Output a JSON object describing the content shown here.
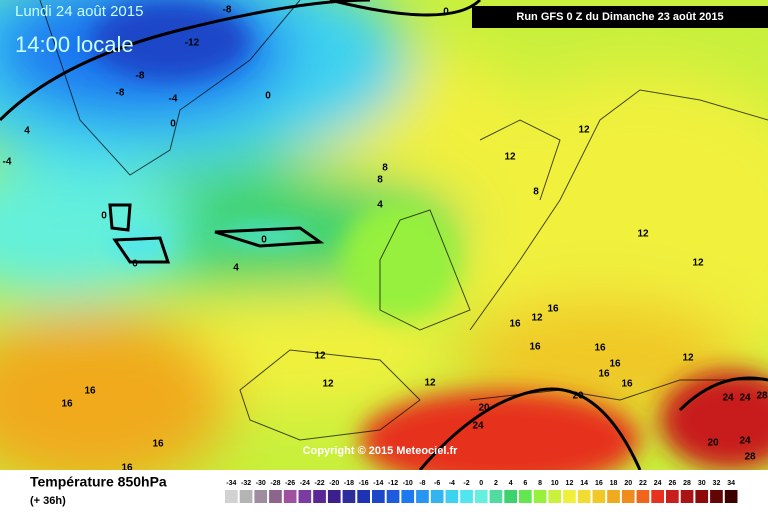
{
  "header": {
    "date": "Lundi 24 août 2015",
    "time": "14:00 locale",
    "run": "Run GFS 0 Z du Dimanche 23 août 2015"
  },
  "copyright": "Copyright © 2015 Meteociel.fr",
  "footer": {
    "title": "Température 850hPa",
    "lead": "(+ 36h)"
  },
  "legend": {
    "ticks": [
      -34,
      -32,
      -30,
      -28,
      -26,
      -24,
      -22,
      -20,
      -18,
      -16,
      -14,
      -12,
      -10,
      -8,
      -6,
      -4,
      -2,
      0,
      2,
      4,
      6,
      8,
      10,
      12,
      14,
      16,
      18,
      20,
      22,
      24,
      26,
      28,
      30,
      32,
      34
    ],
    "colors": [
      "#d2d2d2",
      "#b4b4b4",
      "#a08ca0",
      "#8c648c",
      "#a050a0",
      "#7a3ca0",
      "#5a2896",
      "#3c1e8c",
      "#2d2d9b",
      "#1e32b4",
      "#1e46c8",
      "#1e5adc",
      "#1e78f0",
      "#2896f0",
      "#32b4f0",
      "#3cd2f0",
      "#50e6f0",
      "#64f0dc",
      "#50dca0",
      "#3cd26e",
      "#64e650",
      "#96f03c",
      "#c8f03c",
      "#f0f03c",
      "#f0dc32",
      "#f0c828",
      "#f0aa1e",
      "#f08c1e",
      "#f0641e",
      "#e6321e",
      "#c81e1e",
      "#aa1414",
      "#8c0a0a",
      "#640505",
      "#3c0000"
    ]
  },
  "map_labels": [
    -8,
    -12,
    -8,
    -8,
    -4,
    0,
    0,
    0,
    4,
    -4,
    0,
    0,
    0,
    4,
    4,
    8,
    8,
    8,
    12,
    12,
    12,
    12,
    12,
    12,
    12,
    16,
    16,
    16,
    16,
    16,
    12,
    16,
    16,
    16,
    16,
    16,
    16,
    12,
    20,
    24,
    20,
    20,
    24,
    24,
    28,
    24,
    28
  ]
}
